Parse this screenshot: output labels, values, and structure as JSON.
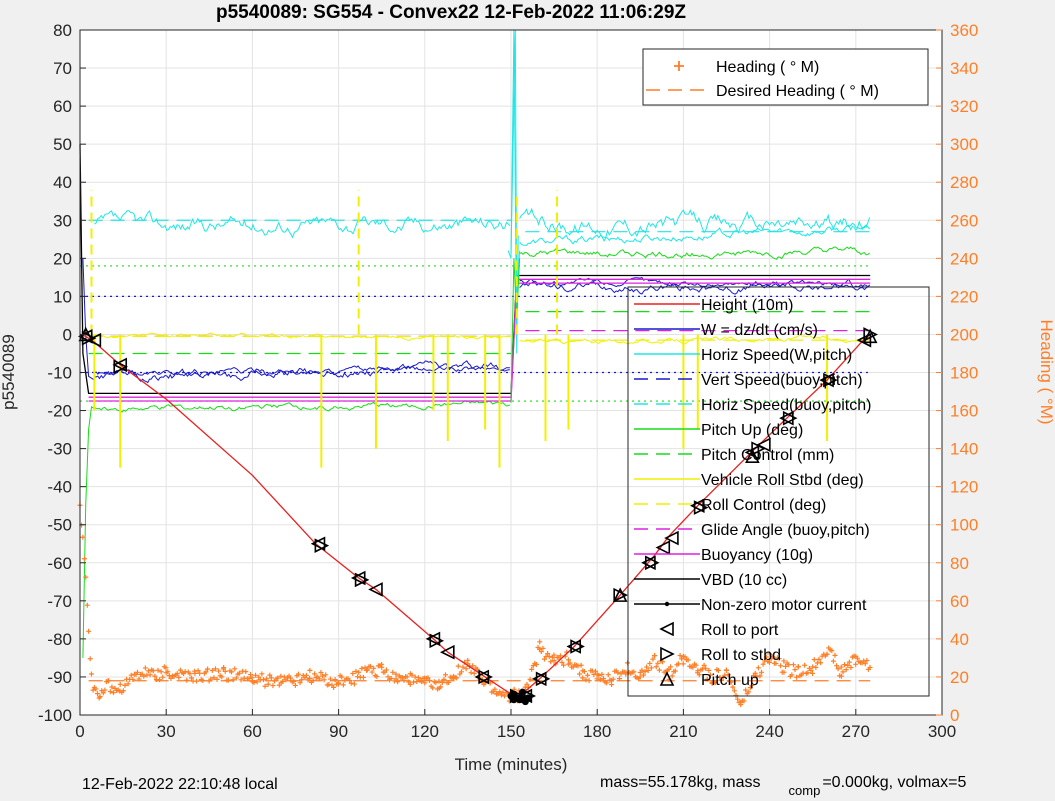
{
  "chart_data": {
    "type": "line",
    "title": "p5540089: SG554 - Convex22 12-Feb-2022 11:06:29Z",
    "xlabel": "Time (minutes)",
    "ylabel": "p5540089",
    "y2label": "Heading (  °M)",
    "xlim": [
      0,
      300
    ],
    "ylim": [
      -100,
      80
    ],
    "y2lim": [
      0,
      360
    ],
    "xticks": [
      0,
      30,
      60,
      90,
      120,
      150,
      180,
      210,
      240,
      270,
      300
    ],
    "yticks": [
      -100,
      -90,
      -80,
      -70,
      -60,
      -50,
      -40,
      -30,
      -20,
      -10,
      0,
      10,
      20,
      30,
      40,
      50,
      60,
      70,
      80
    ],
    "y2ticks": [
      0,
      20,
      40,
      60,
      80,
      100,
      120,
      140,
      160,
      180,
      200,
      220,
      240,
      260,
      280,
      300,
      320,
      340,
      360
    ],
    "grid": true,
    "footer_left": "12-Feb-2022 22:10:48 local",
    "footer_right_a": "mass=55.178kg, mass",
    "footer_right_sub": "comp",
    "footer_right_b": "=0.000kg, volmax=5",
    "legend_top": [
      {
        "name": "Heading (  ° M)",
        "color": "#ff7f27",
        "style": "plus"
      },
      {
        "name": "Desired Heading (    ° M)",
        "color": "#ff7f27",
        "style": "dash"
      }
    ],
    "legend_main": [
      {
        "name": "Height (10m)",
        "color": "#e8201e",
        "style": "solid"
      },
      {
        "name": "W = dz/dt (cm/s)",
        "color": "#1a1acd",
        "style": "solid"
      },
      {
        "name": "Horiz Speed(W,pitch)",
        "color": "#20e6e6",
        "style": "solid"
      },
      {
        "name": "Vert Speed(buoy,pitch)",
        "color": "#1a1acd",
        "style": "dash"
      },
      {
        "name": "Horiz Speed(buoy,pitch)",
        "color": "#20e6e6",
        "style": "dash"
      },
      {
        "name": "Pitch Up (deg)",
        "color": "#18dc18",
        "style": "solid"
      },
      {
        "name": "Pitch Control (mm)",
        "color": "#18dc18",
        "style": "dash"
      },
      {
        "name": "Vehicle Roll Stbd (deg)",
        "color": "#f0f000",
        "style": "solid"
      },
      {
        "name": "Roll Control (deg)",
        "color": "#f0f000",
        "style": "dash"
      },
      {
        "name": "Glide Angle (buoy,pitch)",
        "color": "#e020e0",
        "style": "dash"
      },
      {
        "name": "Buoyancy (10g)",
        "color": "#e020e0",
        "style": "solid"
      },
      {
        "name": "VBD (10 cc)",
        "color": "#000000",
        "style": "solid"
      },
      {
        "name": "Non-zero motor current",
        "color": "#000000",
        "style": "dot"
      },
      {
        "name": "Roll to port",
        "color": "#000000",
        "style": "tri-left"
      },
      {
        "name": "Roll to stbd",
        "color": "#000000",
        "style": "tri-right"
      },
      {
        "name": "Pitch up",
        "color": "#000000",
        "style": "tri-up"
      }
    ],
    "height_profile": {
      "name": "Height (10m)",
      "x": [
        0,
        2,
        5,
        14,
        30,
        60,
        82,
        97,
        103,
        123,
        128,
        141,
        151,
        153,
        160,
        172,
        188,
        200,
        205,
        215,
        235,
        246,
        260,
        272,
        275
      ],
      "y": [
        0,
        -0.5,
        -2,
        -8,
        -17,
        -37,
        -55,
        -64,
        -67,
        -80,
        -83.5,
        -90,
        -95,
        -95,
        -90.5,
        -82,
        -68.5,
        -58,
        -53,
        -45,
        -30,
        -22,
        -12,
        -2,
        0
      ]
    },
    "markers_port": [
      [
        2,
        -0.5
      ],
      [
        5,
        -1.5
      ],
      [
        14,
        -8
      ],
      [
        83,
        -55
      ],
      [
        97,
        -64
      ],
      [
        103,
        -67
      ],
      [
        123,
        -80
      ],
      [
        128,
        -83.5
      ],
      [
        140,
        -90
      ],
      [
        155,
        -95
      ],
      [
        160,
        -90.5
      ],
      [
        172,
        -82
      ],
      [
        198,
        -60
      ],
      [
        203,
        -56
      ],
      [
        206,
        -53.5
      ],
      [
        215,
        -45
      ],
      [
        234,
        -31
      ],
      [
        238,
        -29
      ],
      [
        246,
        -22
      ],
      [
        260,
        -12
      ],
      [
        273,
        -1.5
      ]
    ],
    "markers_stbd": [
      [
        3,
        -1
      ],
      [
        14,
        -8.5
      ],
      [
        84,
        -55.5
      ],
      [
        98,
        -64.5
      ],
      [
        124,
        -80.5
      ],
      [
        141,
        -90
      ],
      [
        152,
        -95
      ],
      [
        156,
        -95
      ],
      [
        161,
        -90.5
      ],
      [
        173,
        -82
      ],
      [
        188,
        -68.5
      ],
      [
        199,
        -60
      ],
      [
        216,
        -45.5
      ],
      [
        236,
        -30
      ],
      [
        247,
        -22
      ],
      [
        261,
        -12
      ],
      [
        275,
        0
      ]
    ],
    "markers_pitch_up": [
      [
        2,
        0
      ],
      [
        188,
        -68.5
      ],
      [
        234,
        -32
      ],
      [
        275,
        -0.5
      ]
    ],
    "motor_current_points": [
      [
        150,
        -95
      ],
      [
        151,
        -96
      ],
      [
        152,
        -95.5
      ],
      [
        153,
        -96
      ],
      [
        154,
        -95
      ],
      [
        155,
        -96.5
      ],
      [
        156,
        -95.5
      ],
      [
        151,
        -94.5
      ],
      [
        154,
        -94
      ]
    ],
    "ref_lines": [
      {
        "name": "Vert Speed(buoy,pitch)",
        "color": "#1a1acd",
        "style": "dot",
        "y": 10,
        "segments": [
          [
            0,
            275
          ]
        ]
      },
      {
        "name": "Vert Speed(buoy,pitch)",
        "color": "#1a1acd",
        "style": "dot",
        "y": -10,
        "segments": [
          [
            0,
            275
          ]
        ]
      },
      {
        "name": "Pitch Up (deg)",
        "color": "#18dc18",
        "style": "dot",
        "y": 18,
        "segments": [
          [
            0,
            275
          ]
        ]
      },
      {
        "name": "Pitch Up (deg)",
        "color": "#18dc18",
        "style": "dot",
        "y": -17.5,
        "segments": [
          [
            0,
            275
          ]
        ]
      },
      {
        "name": "Horiz Speed(buoy,pitch)",
        "color": "#20e6e6",
        "style": "dash",
        "y": 30,
        "segments": [
          [
            3,
            150
          ]
        ]
      },
      {
        "name": "Horiz Speed(buoy,pitch)",
        "color": "#20e6e6",
        "style": "dash",
        "y": 27,
        "segments": [
          [
            155,
            275
          ]
        ]
      },
      {
        "name": "Pitch Control (mm)",
        "color": "#18dc18",
        "style": "dash",
        "y": -5,
        "segments": [
          [
            3,
            150
          ]
        ]
      },
      {
        "name": "Pitch Control (mm)",
        "color": "#18dc18",
        "style": "dash",
        "y": 6,
        "segments": [
          [
            155,
            275
          ]
        ]
      },
      {
        "name": "Glide Angle (buoy,pitch)",
        "color": "#e020e0",
        "style": "dash",
        "y": -0.5,
        "segments": [
          [
            3,
            150
          ]
        ]
      },
      {
        "name": "Glide Angle (buoy,pitch)",
        "color": "#e020e0",
        "style": "dash",
        "y": 1,
        "segments": [
          [
            155,
            275
          ]
        ]
      },
      {
        "name": "Roll Control (deg)",
        "color": "#f0f000",
        "style": "dash",
        "y": -0.5,
        "segments": [
          [
            3,
            150
          ]
        ]
      },
      {
        "name": "Roll Control (deg)",
        "color": "#f0f000",
        "style": "dash",
        "y": -1.5,
        "segments": [
          [
            155,
            275
          ]
        ]
      }
    ],
    "step_lines": [
      {
        "name": "VBD (10 cc)",
        "color": "#000000",
        "x": [
          0,
          1,
          3,
          150,
          152,
          275
        ],
        "y": [
          50,
          -5,
          -15.5,
          -15.5,
          15.5,
          15.5
        ]
      },
      {
        "name": "Buoyancy (10g)",
        "color": "#e020e0",
        "x": [
          3,
          150,
          152,
          275
        ],
        "y": [
          -17.5,
          -17.5,
          14.5,
          14.5
        ]
      },
      {
        "name": "Buoyancy (10g)",
        "color": "#e020e0",
        "x": [
          3,
          150,
          152,
          275
        ],
        "y": [
          -16.5,
          -16.5,
          13.5,
          13.5
        ]
      }
    ],
    "noisy_series": [
      {
        "name": "Horiz Speed(W,pitch)",
        "color": "#20e6e6",
        "segments": [
          [
            5,
            150,
            28.5,
            29.5,
            2.2
          ],
          [
            153,
            275,
            29,
            29,
            2.5
          ]
        ]
      },
      {
        "name": "Horiz Speed(W,pitch)",
        "color": "#20e6e6",
        "segments": [
          [
            153,
            275,
            24,
            28,
            1.2
          ]
        ]
      },
      {
        "name": "W = dz/dt (cm/s)",
        "color": "#1a1acd",
        "segments": [
          [
            5,
            150,
            -11.5,
            -8.5,
            1.3
          ],
          [
            153,
            275,
            12.5,
            12.5,
            1.2
          ]
        ]
      },
      {
        "name": "W = dz/dt (cm/s)",
        "color": "#1a1acd",
        "segments": [
          [
            5,
            150,
            -10.5,
            -9,
            0.8
          ],
          [
            153,
            275,
            14,
            13,
            0.8
          ]
        ]
      },
      {
        "name": "Pitch Up (deg)",
        "color": "#18dc18",
        "segments": [
          [
            5,
            150,
            -19.5,
            -18.5,
            0.8
          ],
          [
            153,
            275,
            21,
            21.5,
            1
          ]
        ]
      },
      {
        "name": "Vehicle Roll Stbd (deg)",
        "color": "#f0f000",
        "segments": [
          [
            5,
            150,
            -0.5,
            -0.5,
            0.5
          ],
          [
            153,
            275,
            -2,
            -1,
            0.6
          ]
        ]
      }
    ],
    "transients": [
      {
        "name": "Pitch Up (deg)",
        "color": "#18dc18",
        "x": [
          1,
          2,
          3,
          4,
          5
        ],
        "y": [
          -85,
          -45,
          -25,
          -19,
          -19.5
        ]
      },
      {
        "name": "Horiz Speed(W,pitch)",
        "color": "#20e6e6",
        "x": [
          149,
          150,
          151,
          152,
          152.5
        ],
        "y": [
          22,
          20,
          80,
          -5,
          26
        ]
      },
      {
        "name": "Horiz Speed(W,pitch)",
        "color": "#20e6e6",
        "x": [
          150,
          151.5,
          152,
          153
        ],
        "y": [
          21,
          80,
          8,
          22
        ]
      },
      {
        "name": "W = dz/dt (cm/s)",
        "color": "#1a1acd",
        "x": [
          1,
          2,
          3,
          5
        ],
        "y": [
          20,
          0,
          -11,
          -12
        ]
      },
      {
        "name": "Pitch Up (deg)",
        "color": "#18dc18",
        "x": [
          150,
          151,
          152,
          153
        ],
        "y": [
          -18,
          20,
          4,
          20
        ]
      }
    ],
    "roll_spikes_up": [
      [
        4,
        38
      ],
      [
        97,
        38
      ],
      [
        152,
        38
      ],
      [
        166,
        38
      ]
    ],
    "roll_spikes_down": [
      [
        5,
        -20
      ],
      [
        14,
        -35
      ],
      [
        84,
        -35
      ],
      [
        103,
        -30
      ],
      [
        123,
        -20
      ],
      [
        128,
        -28
      ],
      [
        141,
        -25
      ],
      [
        146,
        -35
      ],
      [
        162,
        -28
      ],
      [
        170,
        -25
      ],
      [
        210,
        -30
      ],
      [
        215,
        -25
      ],
      [
        260,
        -28
      ]
    ],
    "desired_heading": {
      "name": "Desired Heading (    ° M)",
      "color": "#ff7f27",
      "y2": 18,
      "x": [
        3,
        275
      ]
    },
    "heading_scatter": {
      "name": "Heading (  ° M)",
      "color": "#ff7f27",
      "x": [
        0,
        1,
        2,
        3,
        4,
        5,
        7,
        10,
        14,
        20,
        30,
        40,
        50,
        60,
        70,
        80,
        90,
        97,
        100,
        105,
        110,
        115,
        120,
        125,
        130,
        135,
        140,
        145,
        150,
        155,
        160,
        165,
        170,
        175,
        180,
        185,
        190,
        195,
        200,
        205,
        210,
        215,
        220,
        225,
        230,
        235,
        240,
        245,
        250,
        255,
        260,
        265,
        270,
        275
      ],
      "y2": [
        110,
        95,
        70,
        45,
        20,
        12,
        12,
        15,
        14,
        22,
        22,
        20,
        22,
        19,
        18,
        20,
        17,
        20,
        23,
        24,
        20,
        19,
        17,
        15,
        22,
        26,
        18,
        12,
        10,
        12,
        35,
        28,
        30,
        22,
        20,
        18,
        25,
        20,
        28,
        22,
        30,
        25,
        20,
        22,
        5,
        20,
        30,
        25,
        22,
        25,
        35,
        22,
        30,
        25
      ]
    }
  }
}
